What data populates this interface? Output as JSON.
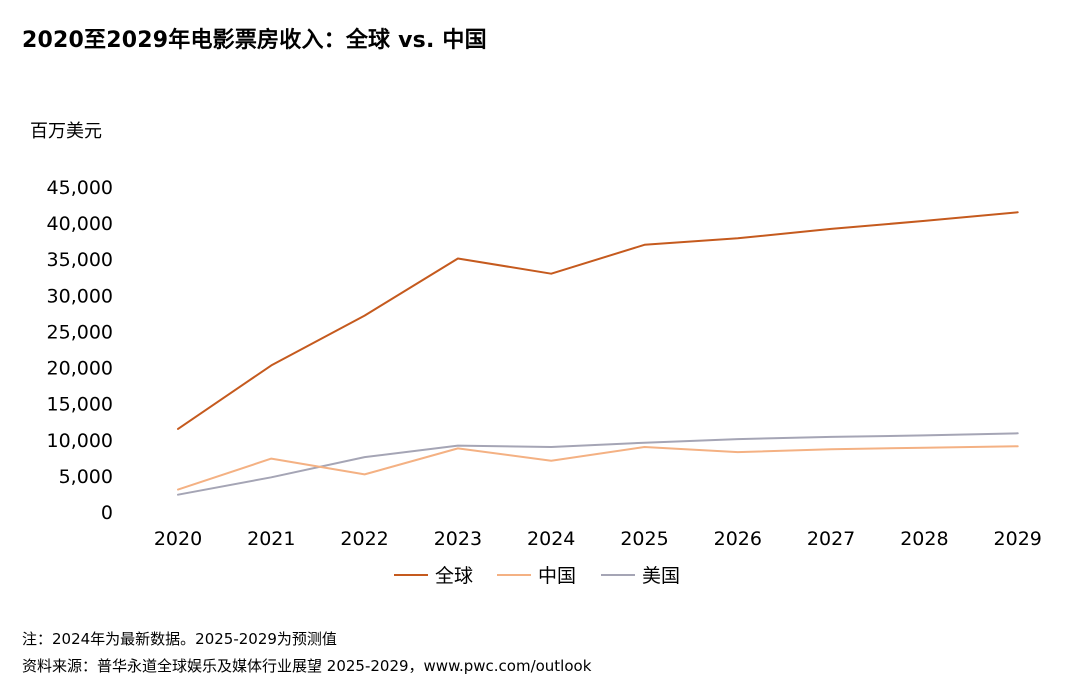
{
  "chart_data": {
    "type": "line",
    "title": "2020至2029年电影票房收入：全球 vs. 中国",
    "ylabel": "百万美元",
    "xlabel": "",
    "x": [
      "2020",
      "2021",
      "2022",
      "2023",
      "2024",
      "2025",
      "2026",
      "2027",
      "2028",
      "2029"
    ],
    "ylim": [
      0,
      45000
    ],
    "yticks": [
      "0",
      "5,000",
      "10,000",
      "15,000",
      "20,000",
      "25,000",
      "30,000",
      "35,000",
      "40,000",
      "45,000"
    ],
    "yticks_values": [
      0,
      5000,
      10000,
      15000,
      20000,
      25000,
      30000,
      35000,
      40000,
      45000
    ],
    "grid": false,
    "legend_position": "bottom",
    "series": [
      {
        "name": "全球",
        "color": "#c55a1e",
        "values": [
          11500,
          20300,
          27200,
          35100,
          33000,
          37000,
          37900,
          39200,
          40300,
          41500
        ]
      },
      {
        "name": "中国",
        "color": "#f4b183",
        "values": [
          3100,
          7400,
          5200,
          8800,
          7100,
          9000,
          8300,
          8700,
          8900,
          9100
        ]
      },
      {
        "name": "美国",
        "color": "#a5a5b5",
        "values": [
          2400,
          4800,
          7600,
          9200,
          9000,
          9600,
          10100,
          10400,
          10600,
          10900
        ]
      }
    ]
  },
  "footnotes": {
    "note": "注：2024年为最新数据。2025-2029为预测值",
    "source": "资料来源：普华永道全球娱乐及媒体行业展望 2025-2029，www.pwc.com/outlook"
  }
}
